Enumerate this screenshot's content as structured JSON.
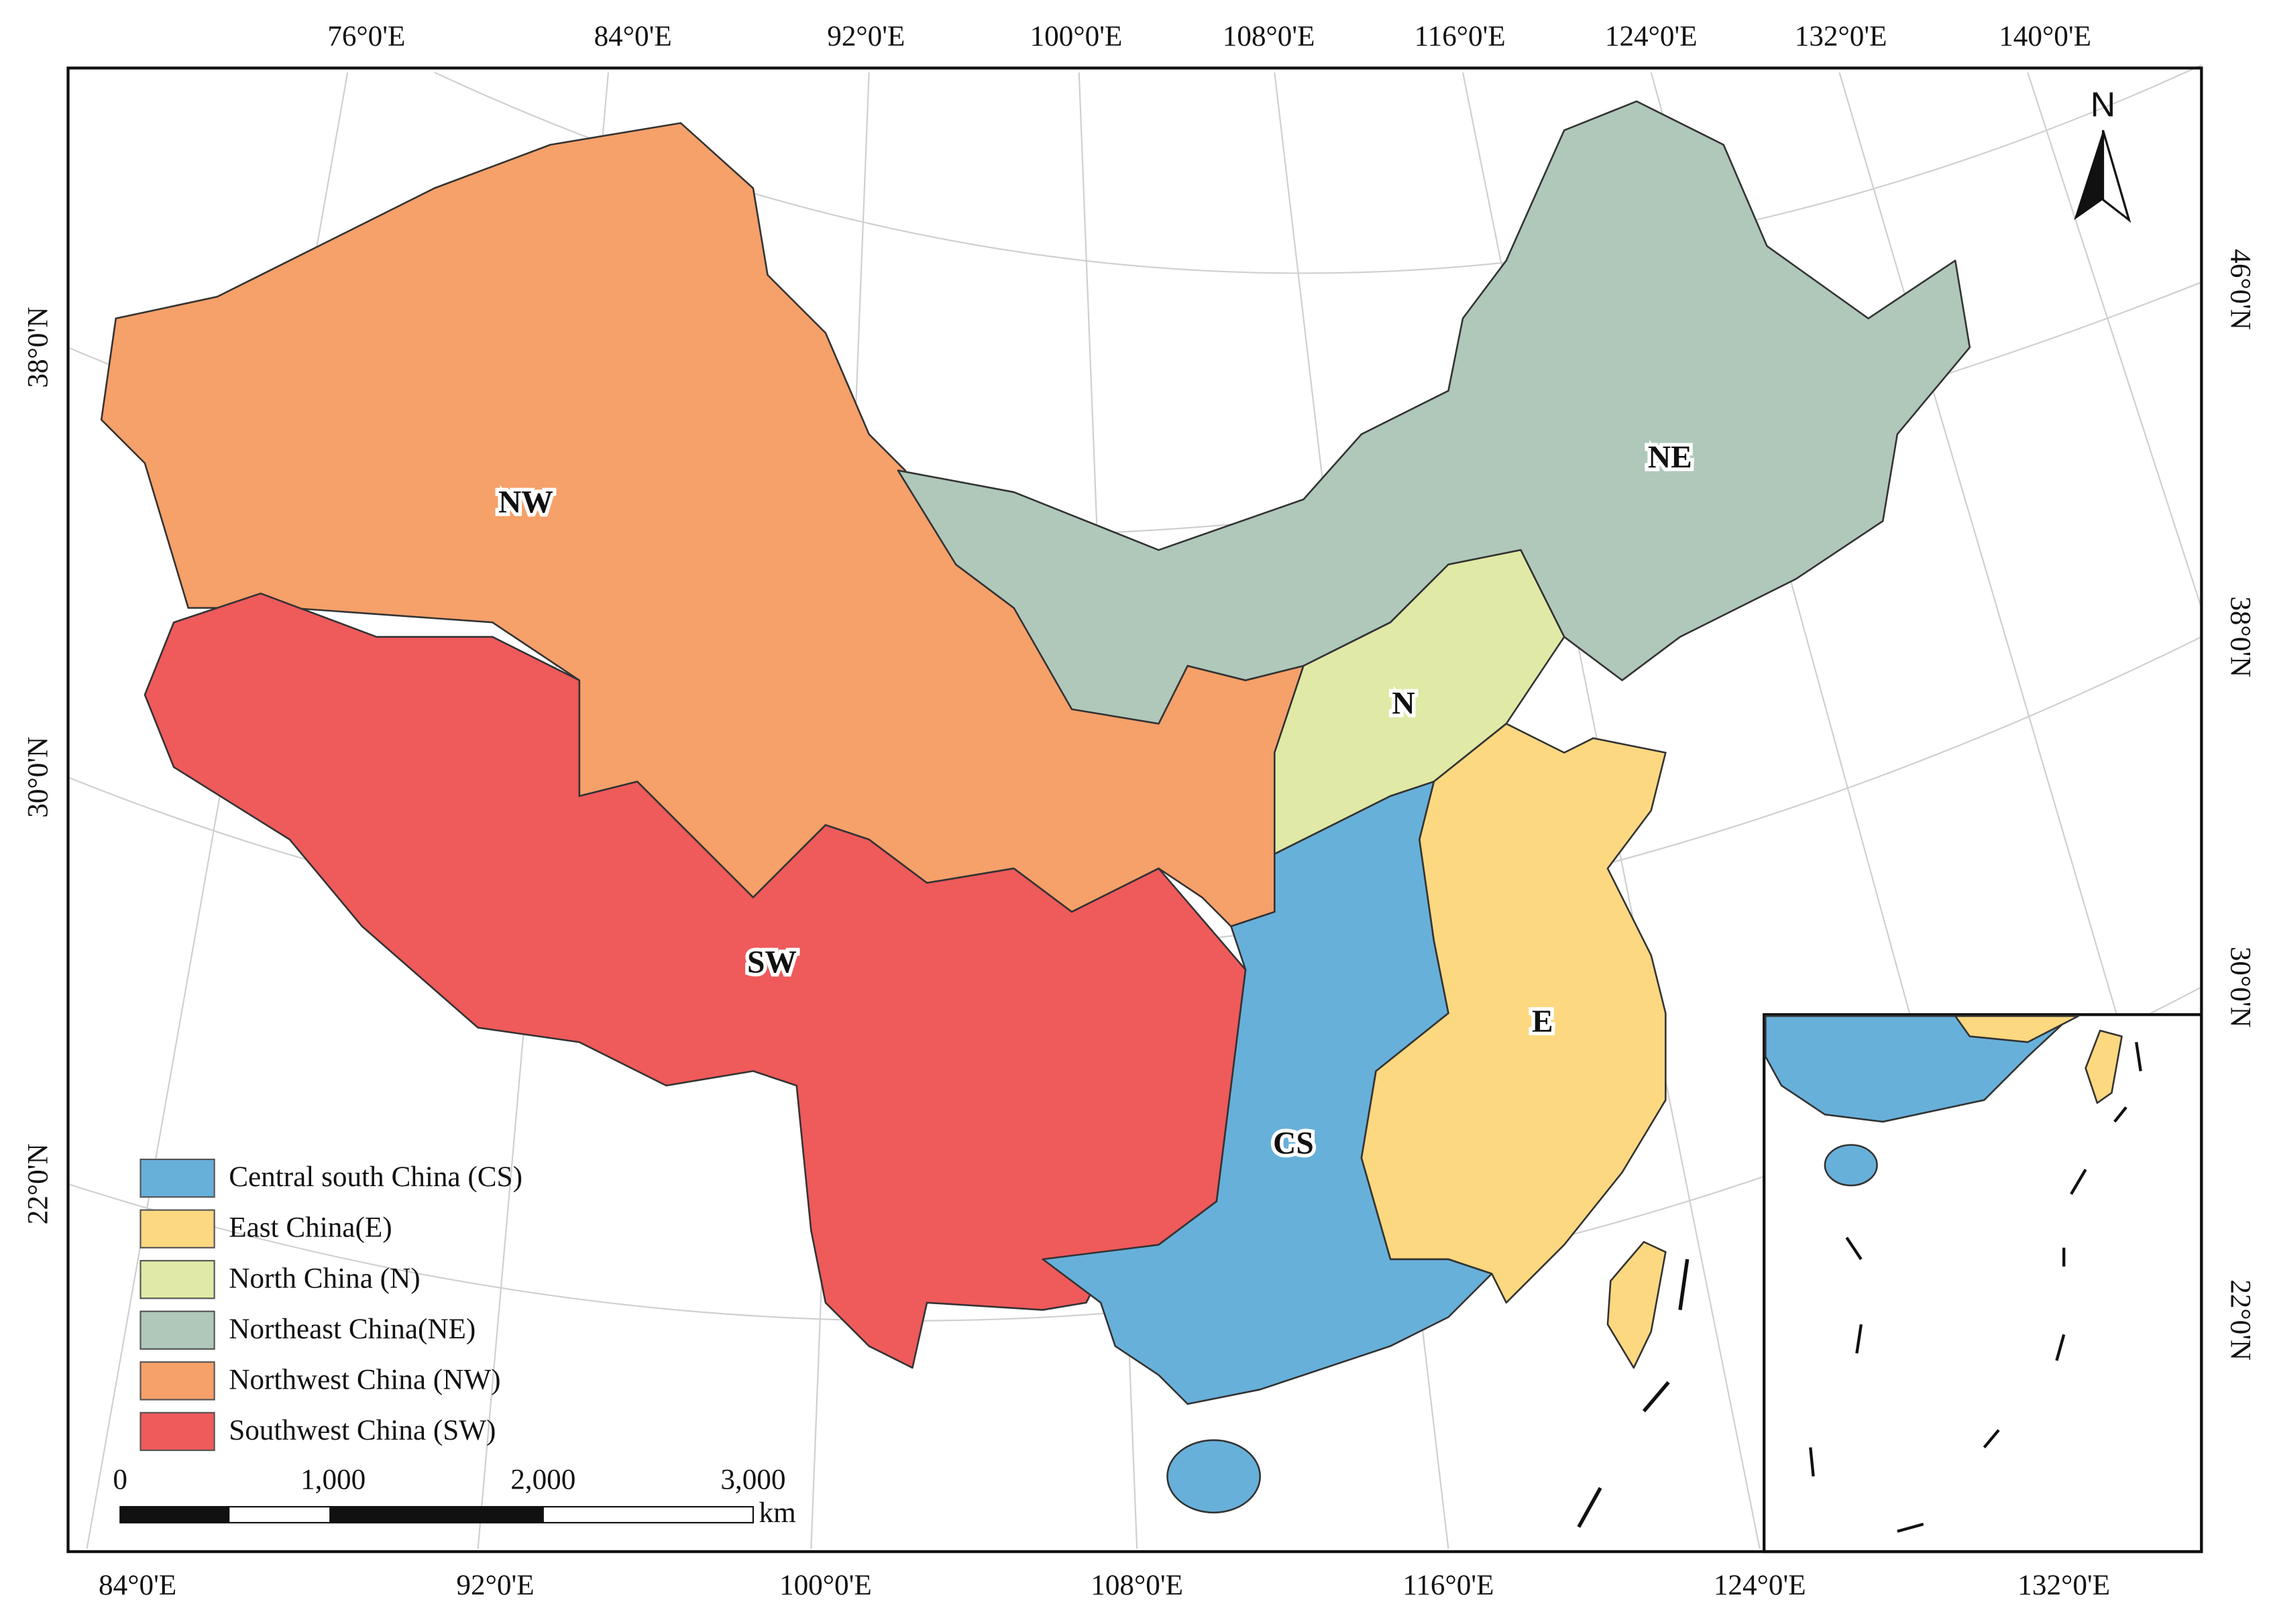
{
  "map": {
    "north_arrow": "N",
    "top_longitudes": [
      "76°0'E",
      "84°0'E",
      "92°0'E",
      "100°0'E",
      "108°0'E",
      "116°0'E",
      "124°0'E",
      "132°0'E",
      "140°0'E"
    ],
    "bottom_longitudes": [
      "84°0'E",
      "92°0'E",
      "100°0'E",
      "108°0'E",
      "116°0'E",
      "124°0'E",
      "132°0'E"
    ],
    "left_latitudes": [
      "38°0'N",
      "30°0'N",
      "22°0'N"
    ],
    "right_latitudes": [
      "46°0'N",
      "38°0'N",
      "30°0'N",
      "22°0'N"
    ],
    "regions": [
      {
        "label": "NW",
        "color": "#F6A06A"
      },
      {
        "label": "SW",
        "color": "#EF5A5B"
      },
      {
        "label": "NE",
        "color": "#AFC8BA"
      },
      {
        "label": "N",
        "color": "#E0E9A5"
      },
      {
        "label": "E",
        "color": "#FCD880"
      },
      {
        "label": "CS",
        "color": "#67B0DA"
      }
    ],
    "legend": [
      {
        "label": "Central south China (CS)",
        "color": "#67B0DA"
      },
      {
        "label": "East China(E)",
        "color": "#FCD880"
      },
      {
        "label": "North China (N)",
        "color": "#E0E9A5"
      },
      {
        "label": "Northeast China(NE)",
        "color": "#AFC8BA"
      },
      {
        "label": "Northwest China (NW)",
        "color": "#F6A06A"
      },
      {
        "label": "Southwest China (SW)",
        "color": "#EF5A5B"
      }
    ],
    "scale_bar": {
      "ticks": [
        "0",
        "1,000",
        "2,000",
        "3,000"
      ],
      "unit": "km"
    }
  }
}
